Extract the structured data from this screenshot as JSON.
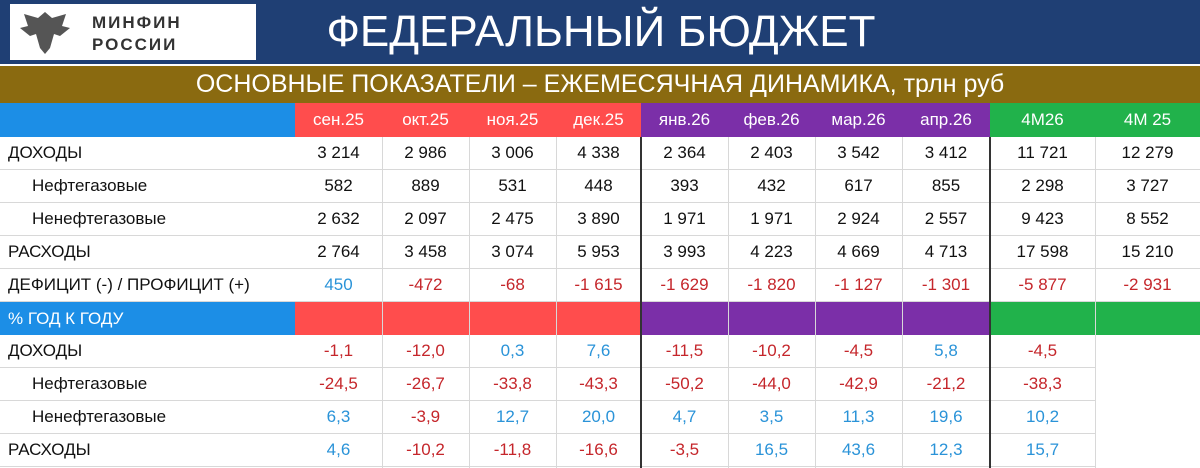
{
  "header": {
    "logo": [
      "МИНФИН",
      "РОССИИ"
    ],
    "title": "ФЕДЕРАЛЬНЫЙ БЮДЖЕТ",
    "subtitle": "ОСНОВНЫЕ ПОКАЗАТЕЛИ – ЕЖЕМЕСЯЧНАЯ ДИНАМИКА, трлн руб"
  },
  "table": {
    "columns": [
      "сен.25",
      "окт.25",
      "ноя.25",
      "дек.25",
      "янв.26",
      "фев.26",
      "мар.26",
      "апр.26",
      "4М26",
      "4М 25"
    ],
    "rows": [
      {
        "label": "ДОХОДЫ",
        "cells": [
          "3 214",
          "2 986",
          "3 006",
          "4 338",
          "2 364",
          "2 403",
          "3 542",
          "3 412",
          "11 721",
          "12 279"
        ]
      },
      {
        "label": "Нефтегазовые",
        "cells": [
          "582",
          "889",
          "531",
          "448",
          "393",
          "432",
          "617",
          "855",
          "2 298",
          "3 727"
        ]
      },
      {
        "label": "Ненефтегазовые",
        "cells": [
          "2 632",
          "2 097",
          "2 475",
          "3 890",
          "1 971",
          "1 971",
          "2 924",
          "2 557",
          "9 423",
          "8 552"
        ]
      },
      {
        "label": "РАСХОДЫ",
        "cells": [
          "2 764",
          "3 458",
          "3 074",
          "5 953",
          "3 993",
          "4 223",
          "4 669",
          "4 713",
          "17 598",
          "15 210"
        ]
      },
      {
        "label": "ДЕФИЦИТ (-) / ПРОФИЦИТ (+)",
        "cells": [
          "450",
          "-472",
          "-68",
          "-1 615",
          "-1 629",
          "-1 820",
          "-1 127",
          "-1 301",
          "-5 877",
          "-2 931"
        ]
      }
    ]
  },
  "section": {
    "label": "% ГОД К ГОДУ",
    "rows": [
      {
        "label": "ДОХОДЫ",
        "cells": [
          "-1,1",
          "-12,0",
          "0,3",
          "7,6",
          "-11,5",
          "-10,2",
          "-4,5",
          "5,8",
          "-4,5"
        ]
      },
      {
        "label": "Нефтегазовые",
        "cells": [
          "-24,5",
          "-26,7",
          "-33,8",
          "-43,3",
          "-50,2",
          "-44,0",
          "-42,9",
          "-21,2",
          "-38,3"
        ]
      },
      {
        "label": "Ненефтегазовые",
        "cells": [
          "6,3",
          "-3,9",
          "12,7",
          "20,0",
          "4,7",
          "3,5",
          "11,3",
          "19,6",
          "10,2"
        ]
      },
      {
        "label": "РАСХОДЫ",
        "cells": [
          "4,6",
          "-10,2",
          "-11,8",
          "-16,6",
          "-3,5",
          "16,5",
          "43,6",
          "12,3",
          "15,7"
        ]
      }
    ]
  }
}
